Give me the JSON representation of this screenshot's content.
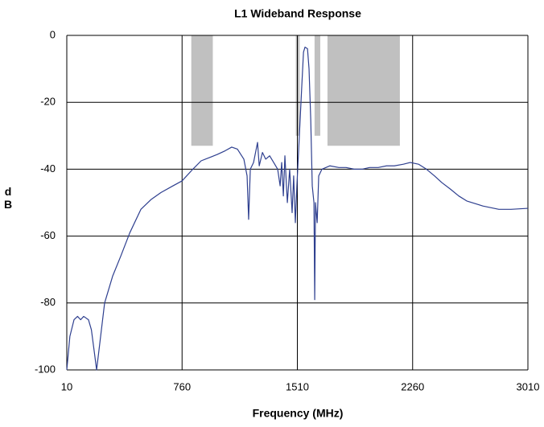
{
  "chart_data": {
    "type": "line",
    "title": "L1 Wideband Response",
    "x_label": "Frequency (MHz)",
    "y_label": "dB",
    "xlim": [
      10,
      3010
    ],
    "xticks": [
      10,
      760,
      1510,
      2260,
      3010
    ],
    "ylim": [
      -100,
      0
    ],
    "yticks": [
      0,
      -20,
      -40,
      -60,
      -80,
      -100
    ],
    "grid": true,
    "shaded_regions": [
      {
        "x": [
          820,
          960
        ],
        "y": [
          0,
          -33
        ],
        "color": "#c0c0c0"
      },
      {
        "x": [
          1500,
          1525
        ],
        "y": [
          0,
          -30
        ],
        "color": "#c0c0c0"
      },
      {
        "x": [
          1622,
          1659
        ],
        "y": [
          0,
          -30
        ],
        "color": "#c0c0c0"
      },
      {
        "x": [
          1706,
          2177
        ],
        "y": [
          0,
          -33
        ],
        "color": "#c0c0c0"
      }
    ],
    "series": [
      {
        "name": "Response",
        "color": "#2e3f8f",
        "x": [
          10,
          30,
          57,
          80,
          100,
          120,
          151,
          170,
          190,
          204,
          230,
          256,
          308,
          361,
          420,
          492,
          560,
          622,
          700,
          760,
          830,
          884,
          940,
          989,
          1040,
          1083,
          1120,
          1162,
          1183,
          1193,
          1204,
          1225,
          1251,
          1262,
          1283,
          1304,
          1330,
          1356,
          1382,
          1398,
          1408,
          1419,
          1429,
          1445,
          1460,
          1476,
          1486,
          1497,
          1507,
          1523,
          1539,
          1550,
          1560,
          1576,
          1586,
          1597,
          1607,
          1618,
          1623,
          1628,
          1639,
          1649,
          1670,
          1722,
          1780,
          1827,
          1880,
          1931,
          1980,
          2036,
          2090,
          2141,
          2200,
          2245,
          2298,
          2350,
          2402,
          2450,
          2507,
          2560,
          2612,
          2717,
          2821,
          2900,
          3010
        ],
        "values": [
          -100,
          -90,
          -85,
          -84,
          -85,
          -84,
          -85,
          -88,
          -95,
          -100,
          -90,
          -80,
          -72,
          -66,
          -59,
          -52,
          -49,
          -47,
          -45,
          -43.5,
          -40,
          -37.5,
          -36.5,
          -35.6,
          -34.5,
          -33.4,
          -34,
          -37,
          -42,
          -55,
          -40,
          -38,
          -32,
          -39,
          -35,
          -37,
          -36,
          -38,
          -40,
          -45,
          -38,
          -48,
          -36,
          -50,
          -40,
          -53,
          -42,
          -56,
          -45,
          -30,
          -15,
          -5,
          -3.5,
          -4,
          -10,
          -25,
          -45,
          -50,
          -79,
          -50,
          -56,
          -42,
          -40,
          -39,
          -39.5,
          -39.5,
          -40,
          -40,
          -39.5,
          -39.5,
          -39,
          -39,
          -38.5,
          -38,
          -38.5,
          -40,
          -42,
          -44,
          -46,
          -48,
          -49.5,
          -51,
          -52,
          -52,
          -51.7
        ]
      }
    ]
  }
}
